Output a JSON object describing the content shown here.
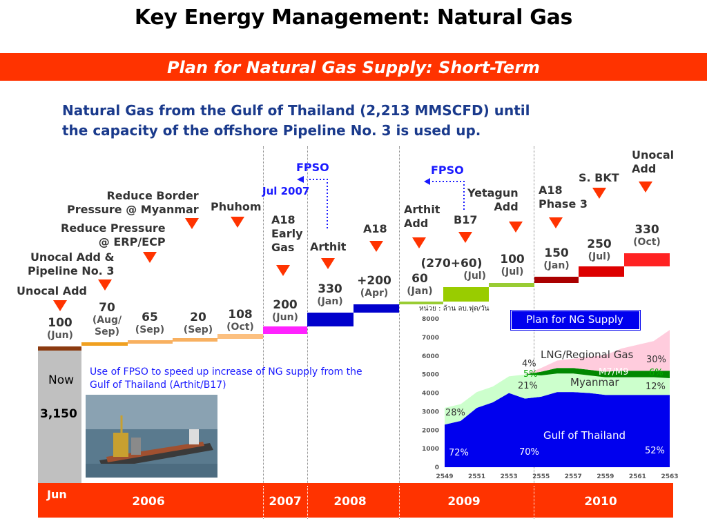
{
  "title": "Key Energy Management: Natural Gas",
  "banner": "Plan for Natural Gas Supply: Short-Term",
  "intro_line1": "Natural Gas from the Gulf of Thailand (2,213 MMSCFD) until",
  "intro_line2": "the capacity of the offshore Pipeline No. 3 is used up.",
  "colors": {
    "accent": "#ff3300",
    "blue": "#1a3a8c",
    "link": "#1a1aff"
  },
  "now": {
    "label": "Now",
    "value": "3,150",
    "month": "Jun"
  },
  "fpso_note": "Use of FPSO to speed up increase of NG supply from the Gulf of Thailand (Arthit/B17)",
  "fpso_label": "FPSO",
  "fpso_date": "Jul 2007",
  "years": [
    "2006",
    "2007",
    "2008",
    "2009",
    "2010"
  ],
  "events": {
    "unocal_add": "Unocal Add",
    "unocal_pipeline": "Unocal Add &\nPipeline No. 3",
    "reduce_pressure": "Reduce Pressure\n@ ERP/ECP",
    "reduce_border": "Reduce Border\nPressure @ Myanmar",
    "phuhom": "Phuhom",
    "a18_early": "A18\nEarly\nGas",
    "arthit": "Arthit",
    "a18": "A18",
    "arthit_add": "Arthit\nAdd",
    "b17": "B17",
    "yetagun": "Yetagun\nAdd",
    "a18_phase3": "A18\nPhase 3",
    "s_bkt": "S. BKT",
    "unocal_add2": "Unocal\nAdd"
  },
  "steps": [
    {
      "value": "100",
      "period": "(Jun)"
    },
    {
      "value": "70",
      "period": "(Aug/\nSep)"
    },
    {
      "value": "65",
      "period": "(Sep)"
    },
    {
      "value": "20",
      "period": "(Sep)"
    },
    {
      "value": "108",
      "period": "(Oct)"
    },
    {
      "value": "200",
      "period": "(Jun)"
    },
    {
      "value": "330",
      "period": "(Jan)"
    },
    {
      "value": "+200",
      "period": "(Apr)"
    },
    {
      "value": "60",
      "period": "(Jan)"
    },
    {
      "value": "(270+60)",
      "period": "(Jul)"
    },
    {
      "value": "100",
      "period": "(Jul)"
    },
    {
      "value": "150",
      "period": "(Jan)"
    },
    {
      "value": "250",
      "period": "(Jul)"
    },
    {
      "value": "330",
      "period": "(Oct)"
    }
  ],
  "chart_data": {
    "type": "area",
    "title": "Plan for NG Supply",
    "unit_label": "หน่วย : ล้าน ลบ.ฟุต/วัน",
    "x": [
      2549,
      2550,
      2551,
      2552,
      2553,
      2554,
      2555,
      2556,
      2557,
      2558,
      2559,
      2560,
      2561,
      2562,
      2563
    ],
    "x_ticks": [
      2549,
      2551,
      2553,
      2555,
      2557,
      2559,
      2561,
      2563
    ],
    "ylim": [
      0,
      8000
    ],
    "y_ticks": [
      0,
      1000,
      2000,
      3000,
      4000,
      5000,
      6000,
      7000,
      8000
    ],
    "grid": false,
    "series": [
      {
        "name": "Gulf of Thailand",
        "color": "#0000ee",
        "values": [
          2300,
          2500,
          3200,
          3500,
          4000,
          3700,
          3800,
          4050,
          4050,
          4000,
          3900,
          3900,
          3900,
          3900,
          3900
        ]
      },
      {
        "name": "Myanmar",
        "color": "#ccffcc",
        "values": [
          900,
          900,
          850,
          850,
          900,
          1300,
          1150,
          1000,
          1000,
          950,
          950,
          950,
          950,
          950,
          900
        ]
      },
      {
        "name": "M7/M9",
        "color": "#008800",
        "values": [
          0,
          0,
          0,
          0,
          0,
          0,
          200,
          300,
          300,
          300,
          300,
          350,
          350,
          350,
          400
        ]
      },
      {
        "name": "LNG/Regional Gas",
        "color": "#ffccdd",
        "values": [
          0,
          0,
          0,
          0,
          0,
          0,
          200,
          400,
          500,
          700,
          900,
          1200,
          1400,
          1600,
          2200
        ]
      }
    ],
    "annotations": [
      "28%",
      "72%",
      "4%",
      "5%",
      "21%",
      "70%",
      "30%",
      "6%",
      "12%",
      "52%"
    ]
  }
}
